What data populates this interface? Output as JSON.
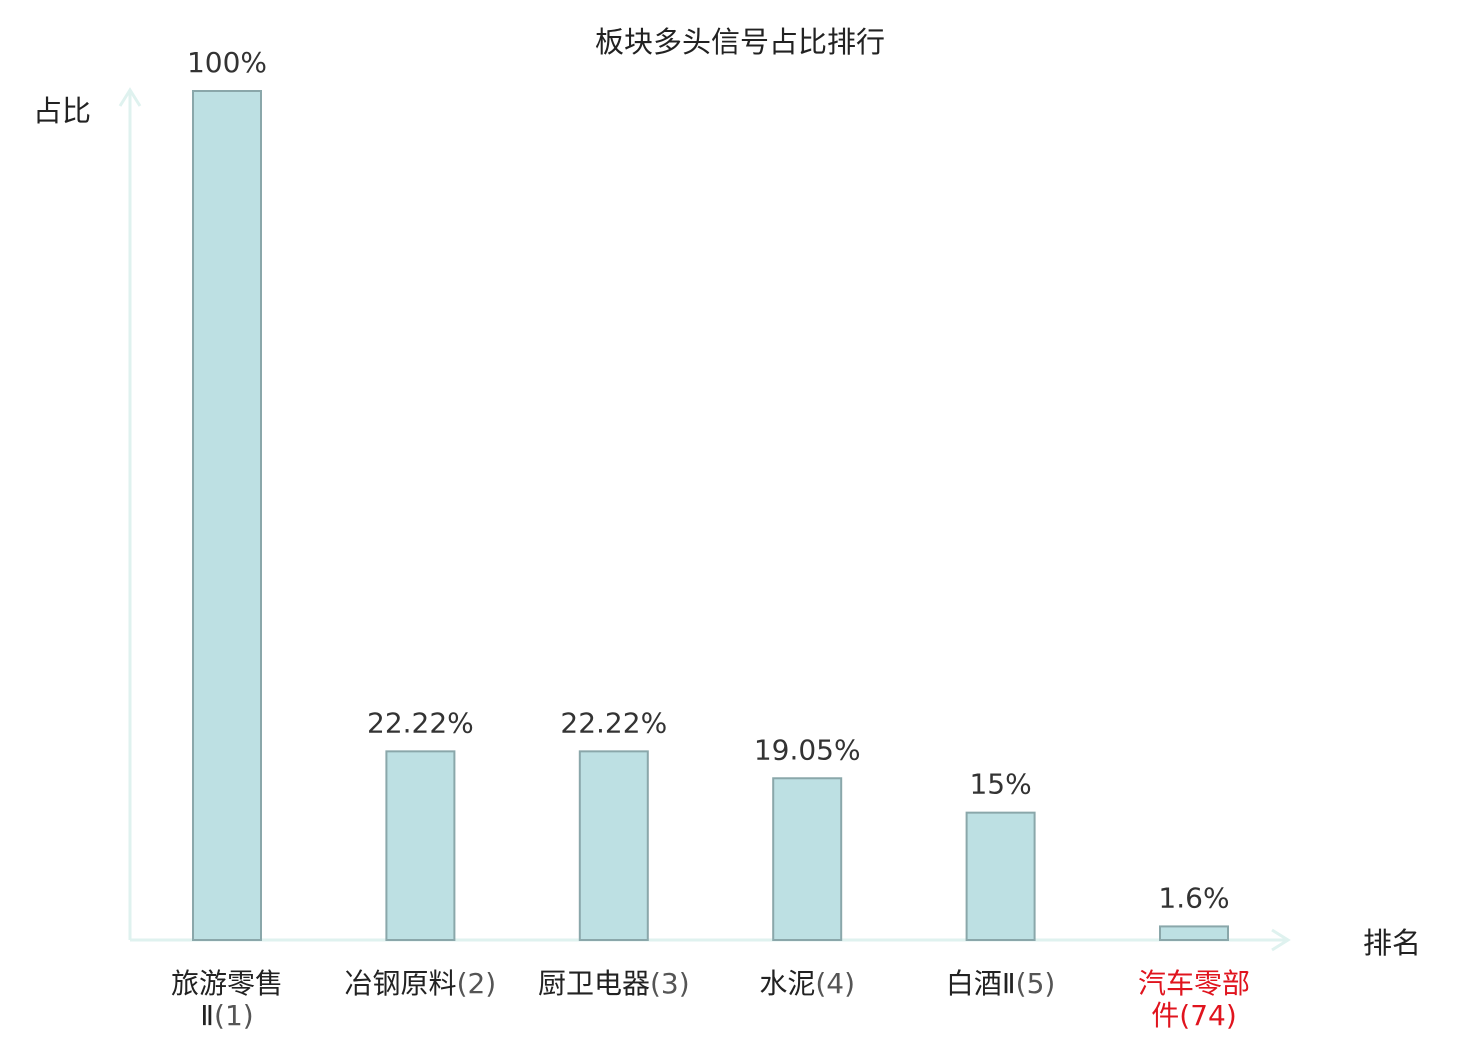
{
  "chart_data": {
    "type": "bar",
    "title": "板块多头信号占比排行",
    "ylabel": "占比",
    "xlabel": "排名",
    "ylim": [
      0,
      100
    ],
    "grid": false,
    "categories": [
      {
        "name": "旅游零售Ⅱ",
        "rank": "(1)",
        "highlight": false
      },
      {
        "name": "冶钢原料",
        "rank": "(2)",
        "highlight": false
      },
      {
        "name": "厨卫电器",
        "rank": "(3)",
        "highlight": false
      },
      {
        "name": "水泥",
        "rank": "(4)",
        "highlight": false
      },
      {
        "name": "白酒Ⅱ",
        "rank": "(5)",
        "highlight": false
      },
      {
        "name": "汽车零部件",
        "rank": "(74)",
        "highlight": true
      }
    ],
    "values": [
      100,
      22.22,
      22.22,
      19.05,
      15,
      1.6
    ],
    "value_labels": [
      "100%",
      "22.22%",
      "22.22%",
      "19.05%",
      "15%",
      "1.6%"
    ],
    "colors": {
      "bar_fill": "#bde0e3",
      "bar_stroke": "#8aa7aa",
      "axis": "#dff2ef",
      "text": "#222222",
      "rank_text": "#555555",
      "highlight": "#e0141e"
    }
  }
}
